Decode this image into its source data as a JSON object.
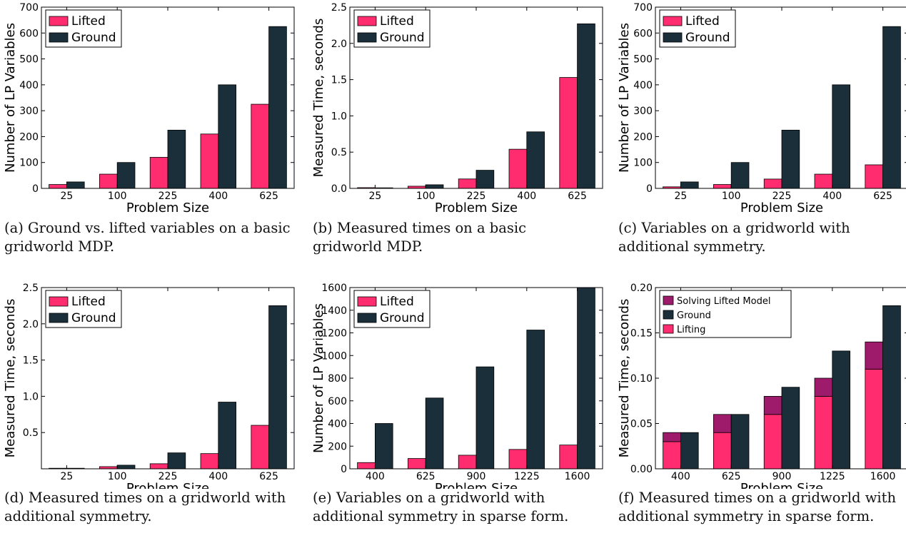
{
  "colors": {
    "lifted": "#ff2d6f",
    "ground": "#1b2f3b",
    "solving": "#9e1a6a"
  },
  "panels": [
    {
      "caption": "(a) Ground vs. lifted variables on a basic gridworld MDP.",
      "chart_data": {
        "type": "bar",
        "xlabel": "Problem Size",
        "ylabel": "Number of LP Variables",
        "categories": [
          "25",
          "100",
          "225",
          "400",
          "625"
        ],
        "ylim": [
          0,
          700
        ],
        "yticks": [
          0,
          100,
          200,
          300,
          400,
          500,
          600,
          700
        ],
        "ytick_labels": [
          "0",
          "100",
          "200",
          "300",
          "400",
          "500",
          "600",
          "700"
        ],
        "legend": "top-left",
        "series": [
          {
            "name": "Lifted",
            "color": "lifted",
            "values": [
              15,
              55,
              120,
              210,
              325
            ]
          },
          {
            "name": "Ground",
            "color": "ground",
            "values": [
              25,
              100,
              225,
              400,
              625
            ]
          }
        ]
      }
    },
    {
      "caption": "(b) Measured times on a basic gridworld MDP.",
      "chart_data": {
        "type": "bar",
        "xlabel": "Problem Size",
        "ylabel": "Measured Time, seconds",
        "categories": [
          "25",
          "100",
          "225",
          "400",
          "625"
        ],
        "ylim": [
          0,
          2.5
        ],
        "yticks": [
          0,
          0.5,
          1.0,
          1.5,
          2.0,
          2.5
        ],
        "ytick_labels": [
          "0.0",
          "0.5",
          "1.0",
          "1.5",
          "2.0",
          "2.5"
        ],
        "legend": "top-left",
        "series": [
          {
            "name": "Lifted",
            "color": "lifted",
            "values": [
              0.01,
              0.03,
              0.13,
              0.54,
              1.53
            ]
          },
          {
            "name": "Ground",
            "color": "ground",
            "values": [
              0.005,
              0.05,
              0.25,
              0.78,
              2.27
            ]
          }
        ]
      }
    },
    {
      "caption": "(c) Variables on a gridworld with additional symmetry.",
      "chart_data": {
        "type": "bar",
        "xlabel": "Problem Size",
        "ylabel": "Number of LP Variables",
        "categories": [
          "25",
          "100",
          "225",
          "400",
          "625"
        ],
        "ylim": [
          0,
          700
        ],
        "yticks": [
          0,
          100,
          200,
          300,
          400,
          500,
          600,
          700
        ],
        "ytick_labels": [
          "0",
          "100",
          "200",
          "300",
          "400",
          "500",
          "600",
          "700"
        ],
        "legend": "top-left",
        "series": [
          {
            "name": "Lifted",
            "color": "lifted",
            "values": [
              6,
              15,
              36,
              55,
              91
            ]
          },
          {
            "name": "Ground",
            "color": "ground",
            "values": [
              25,
              100,
              225,
              400,
              625
            ]
          }
        ]
      }
    },
    {
      "caption": "(d) Measured times on a gridworld with additional symmetry.",
      "chart_data": {
        "type": "bar",
        "xlabel": "Problem Size",
        "ylabel": "Measured Time, seconds",
        "categories": [
          "25",
          "100",
          "225",
          "400",
          "625"
        ],
        "ylim": [
          0,
          2.5
        ],
        "yticks": [
          0.5,
          1.0,
          1.5,
          2.0,
          2.5
        ],
        "ytick_labels": [
          "0.5",
          "1.0",
          "1.5",
          "2.0",
          "2.5"
        ],
        "legend": "top-left",
        "series": [
          {
            "name": "Lifted",
            "color": "lifted",
            "values": [
              0.0,
              0.03,
              0.07,
              0.21,
              0.6
            ]
          },
          {
            "name": "Ground",
            "color": "ground",
            "values": [
              0.0,
              0.05,
              0.22,
              0.92,
              2.25
            ]
          }
        ]
      }
    },
    {
      "caption": "(e) Variables on a gridworld with additional symmetry in sparse form.",
      "chart_data": {
        "type": "bar",
        "xlabel": "Problem Size",
        "ylabel": "Number of LP Variables",
        "categories": [
          "400",
          "625",
          "900",
          "1225",
          "1600"
        ],
        "ylim": [
          0,
          1600
        ],
        "yticks": [
          0,
          200,
          400,
          600,
          800,
          1000,
          1200,
          1400,
          1600
        ],
        "ytick_labels": [
          "0",
          "200",
          "400",
          "600",
          "800",
          "1000",
          "1200",
          "1400",
          "1600"
        ],
        "legend": "top-left",
        "series": [
          {
            "name": "Lifted",
            "color": "lifted",
            "values": [
              55,
              91,
              120,
              171,
              210
            ]
          },
          {
            "name": "Ground",
            "color": "ground",
            "values": [
              400,
              625,
              900,
              1225,
              1600
            ]
          }
        ]
      }
    },
    {
      "caption": "(f) Measured times on a gridworld with additional symmetry in sparse form.",
      "chart_data": {
        "type": "bar",
        "stacked_first": true,
        "xlabel": "Problem Size",
        "ylabel": "Measured Time, seconds",
        "categories": [
          "400",
          "625",
          "900",
          "1225",
          "1600"
        ],
        "ylim": [
          0,
          0.2
        ],
        "yticks": [
          0,
          0.05,
          0.1,
          0.15,
          0.2
        ],
        "ytick_labels": [
          "0.00",
          "0.05",
          "0.10",
          "0.15",
          "0.20"
        ],
        "legend": "top-left",
        "series": [
          {
            "name": "Lifting",
            "color": "lifted",
            "values": [
              0.03,
              0.04,
              0.06,
              0.08,
              0.11
            ]
          },
          {
            "name": "Solving Lifted Model",
            "color": "solving",
            "values": [
              0.01,
              0.02,
              0.02,
              0.02,
              0.03
            ]
          },
          {
            "name": "Ground",
            "color": "ground",
            "values": [
              0.04,
              0.06,
              0.09,
              0.13,
              0.18
            ]
          }
        ],
        "legend_order": [
          "Solving Lifted Model",
          "Ground",
          "Lifting"
        ]
      }
    }
  ]
}
